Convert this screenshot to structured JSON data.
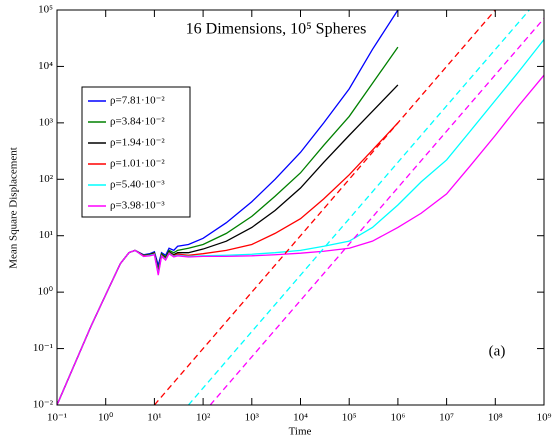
{
  "chart_data": {
    "type": "line",
    "title": "16 Dimensions, 10⁵ Spheres",
    "xlabel": "Time",
    "ylabel": "Mean Square Displacement",
    "annotation": "(a)",
    "xscale": "log",
    "yscale": "log",
    "xlim": [
      0.1,
      1000000000
    ],
    "ylim": [
      0.01,
      100000
    ],
    "xticks": [
      {
        "value": 0.1,
        "label": "10⁻¹"
      },
      {
        "value": 1,
        "label": "10⁰"
      },
      {
        "value": 10,
        "label": "10¹"
      },
      {
        "value": 100,
        "label": "10²"
      },
      {
        "value": 1000,
        "label": "10³"
      },
      {
        "value": 10000,
        "label": "10⁴"
      },
      {
        "value": 100000,
        "label": "10⁵"
      },
      {
        "value": 1000000,
        "label": "10⁶"
      },
      {
        "value": 10000000,
        "label": "10⁷"
      },
      {
        "value": 100000000,
        "label": "10⁸"
      },
      {
        "value": 1000000000,
        "label": "10⁹"
      }
    ],
    "yticks": [
      {
        "value": 0.01,
        "label": "10⁻²"
      },
      {
        "value": 0.1,
        "label": "10⁻¹"
      },
      {
        "value": 1,
        "label": "10⁰"
      },
      {
        "value": 10,
        "label": "10¹"
      },
      {
        "value": 100,
        "label": "10²"
      },
      {
        "value": 1000,
        "label": "10³"
      },
      {
        "value": 10000,
        "label": "10⁴"
      },
      {
        "value": 100000,
        "label": "10⁵"
      }
    ],
    "legend": "upper left",
    "series": [
      {
        "name": "ρ=7.81·10⁻²",
        "color": "#0000ff",
        "x": [
          0.1,
          0.2,
          0.5,
          1,
          2,
          3,
          4,
          6,
          8,
          10,
          12,
          14,
          17,
          20,
          25,
          30,
          50,
          100,
          300,
          1000,
          3000,
          10000,
          30000,
          100000,
          300000,
          1000000
        ],
        "values": [
          0.01,
          0.04,
          0.25,
          0.9,
          3.2,
          5,
          5.5,
          4.6,
          4.8,
          5.2,
          3,
          5,
          4.5,
          6,
          5.5,
          6.5,
          7,
          9,
          17,
          40,
          100,
          300,
          1000,
          4000,
          20000,
          100000
        ]
      },
      {
        "name": "ρ=3.84·10⁻²",
        "color": "#008000",
        "x": [
          0.1,
          0.2,
          0.5,
          1,
          2,
          3,
          4,
          6,
          8,
          10,
          12,
          14,
          17,
          20,
          25,
          30,
          50,
          100,
          300,
          1000,
          3000,
          10000,
          30000,
          100000,
          300000,
          1000000
        ],
        "values": [
          0.01,
          0.04,
          0.25,
          0.9,
          3.2,
          5,
          5.5,
          4.5,
          4.7,
          5,
          2.5,
          4.8,
          4.2,
          5.5,
          5,
          5.5,
          6,
          7,
          11,
          22,
          50,
          130,
          400,
          1300,
          5000,
          22000
        ]
      },
      {
        "name": "ρ=1.94·10⁻²",
        "color": "#000000",
        "x": [
          0.1,
          0.2,
          0.5,
          1,
          2,
          3,
          4,
          6,
          8,
          10,
          12,
          14,
          17,
          20,
          25,
          30,
          50,
          100,
          300,
          1000,
          3000,
          10000,
          30000,
          100000,
          300000,
          1000000
        ],
        "values": [
          0.01,
          0.04,
          0.25,
          0.9,
          3.2,
          5,
          5.5,
          4.4,
          4.6,
          4.9,
          2.3,
          4.6,
          4,
          5.2,
          4.6,
          5,
          5,
          5.8,
          8,
          14,
          28,
          70,
          200,
          600,
          1600,
          4700
        ]
      },
      {
        "name": "ρ=1.01·10⁻²",
        "color": "#ff0000",
        "x": [
          0.1,
          0.2,
          0.5,
          1,
          2,
          3,
          4,
          6,
          8,
          10,
          12,
          14,
          17,
          20,
          25,
          30,
          50,
          100,
          300,
          1000,
          3000,
          10000,
          30000,
          100000,
          300000,
          1000000
        ],
        "values": [
          0.01,
          0.04,
          0.25,
          0.9,
          3.2,
          5,
          5.5,
          4.4,
          4.5,
          4.8,
          2.2,
          4.5,
          3.9,
          5,
          4.4,
          4.7,
          4.5,
          4.8,
          5.5,
          7,
          11,
          20,
          45,
          120,
          330,
          1000
        ]
      },
      {
        "name": "ρ=5.40·10⁻³",
        "color": "#00ffff",
        "x": [
          0.1,
          0.2,
          0.5,
          1,
          2,
          3,
          4,
          6,
          8,
          10,
          12,
          14,
          17,
          20,
          25,
          30,
          50,
          100,
          300,
          1000,
          3000,
          10000,
          30000,
          100000,
          300000,
          1000000,
          3000000,
          10000000,
          30000000,
          100000000,
          300000000,
          1000000000
        ],
        "values": [
          0.01,
          0.04,
          0.25,
          0.9,
          3.2,
          5,
          5.5,
          4.3,
          4.5,
          4.7,
          2.1,
          4.4,
          3.8,
          4.9,
          4.3,
          4.5,
          4.3,
          4.4,
          4.5,
          4.7,
          5,
          5.5,
          6.5,
          8,
          14,
          35,
          90,
          220,
          700,
          2500,
          8000,
          30000
        ]
      },
      {
        "name": "ρ=3.98·10⁻³",
        "color": "#ff00ff",
        "x": [
          0.1,
          0.2,
          0.5,
          1,
          2,
          3,
          4,
          6,
          8,
          10,
          12,
          14,
          17,
          20,
          25,
          30,
          50,
          100,
          300,
          1000,
          3000,
          10000,
          30000,
          100000,
          300000,
          1000000,
          3000000,
          10000000,
          30000000,
          100000000,
          300000000,
          1000000000
        ],
        "values": [
          0.01,
          0.04,
          0.25,
          0.9,
          3.2,
          5,
          5.5,
          4.3,
          4.4,
          4.6,
          2,
          4.3,
          3.7,
          4.8,
          4.2,
          4.4,
          4.2,
          4.3,
          4.3,
          4.4,
          4.6,
          4.9,
          5.3,
          6,
          8,
          14,
          25,
          55,
          170,
          600,
          2000,
          7000
        ]
      },
      {
        "color": "#ff0000",
        "dashed": true,
        "x": [
          10,
          100000000
        ],
        "values": [
          0.01,
          100000
        ]
      },
      {
        "color": "#00ffff",
        "dashed": true,
        "x": [
          50,
          500000000
        ],
        "values": [
          0.01,
          100000
        ]
      },
      {
        "color": "#ff00ff",
        "dashed": true,
        "x": [
          140,
          1000000000
        ],
        "values": [
          0.01,
          71000
        ]
      }
    ]
  }
}
